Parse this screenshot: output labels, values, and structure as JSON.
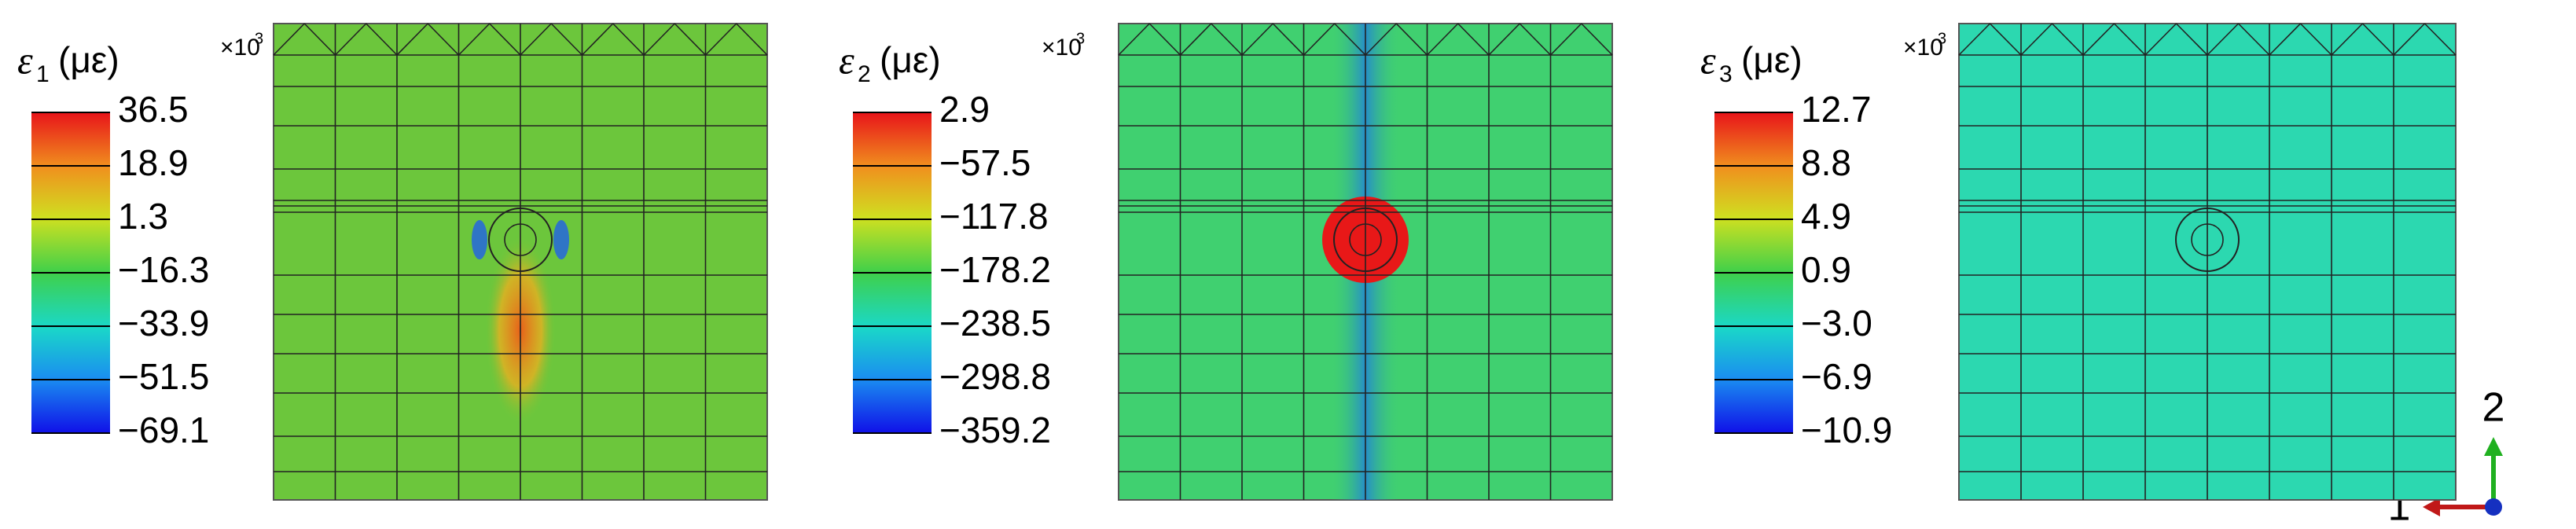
{
  "panels": [
    {
      "symbol": "ε",
      "subscript": "1",
      "unit": "(με)",
      "scale_base": "×10",
      "scale_exponent": "3",
      "colorbar_labels": [
        "36.5",
        "18.9",
        "1.3",
        "−16.3",
        "−33.9",
        "−51.5",
        "−69.1"
      ]
    },
    {
      "symbol": "ε",
      "subscript": "2",
      "unit": "(με)",
      "scale_base": "×10",
      "scale_exponent": "3",
      "colorbar_labels": [
        "2.9",
        "−57.5",
        "−117.8",
        "−178.2",
        "−238.5",
        "−298.8",
        "−359.2"
      ]
    },
    {
      "symbol": "ε",
      "subscript": "3",
      "unit": "(με)",
      "scale_base": "×10",
      "scale_exponent": "3",
      "colorbar_labels": [
        "12.7",
        "8.8",
        "4.9",
        "0.9",
        "−3.0",
        "−6.9",
        "−10.9"
      ]
    }
  ],
  "triad": {
    "x_label": "1",
    "y_label": "2"
  }
}
